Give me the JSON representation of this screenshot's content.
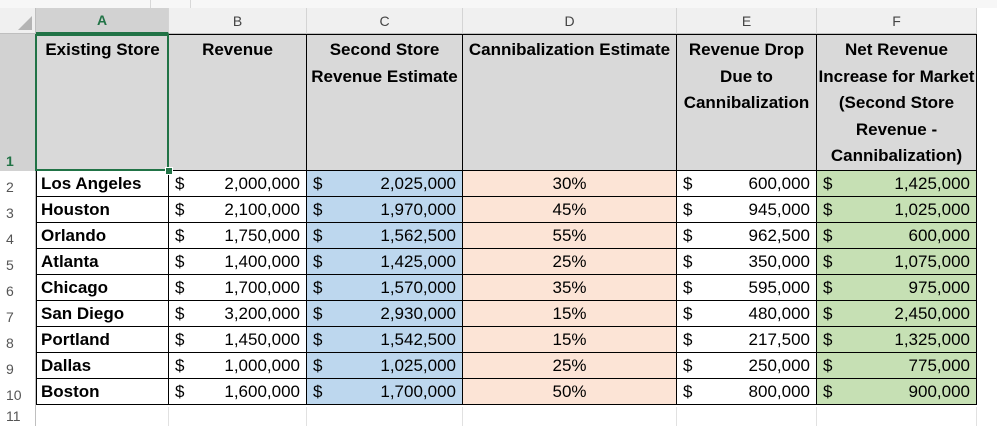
{
  "columns": [
    "A",
    "B",
    "C",
    "D",
    "E",
    "F"
  ],
  "row_numbers": [
    "1",
    "2",
    "3",
    "4",
    "5",
    "6",
    "7",
    "8",
    "9",
    "10",
    "11"
  ],
  "headers": {
    "existing_store": "Existing Store",
    "revenue": "Revenue",
    "second_store": "Second Store Revenue Estimate",
    "cannibalization": "Cannibalization Estimate",
    "revenue_drop": "Revenue Drop Due to Cannibalization",
    "net_increase": "Net Revenue Increase for Market (Second Store Revenue - Cannibalization)"
  },
  "currency_symbol": "$",
  "rows": [
    {
      "store": "Los Angeles",
      "revenue": "2,000,000",
      "second": "2,025,000",
      "cannibal": "30%",
      "drop": "600,000",
      "net": "1,425,000"
    },
    {
      "store": "Houston",
      "revenue": "2,100,000",
      "second": "1,970,000",
      "cannibal": "45%",
      "drop": "945,000",
      "net": "1,025,000"
    },
    {
      "store": "Orlando",
      "revenue": "1,750,000",
      "second": "1,562,500",
      "cannibal": "55%",
      "drop": "962,500",
      "net": "600,000"
    },
    {
      "store": "Atlanta",
      "revenue": "1,400,000",
      "second": "1,425,000",
      "cannibal": "25%",
      "drop": "350,000",
      "net": "1,075,000"
    },
    {
      "store": "Chicago",
      "revenue": "1,700,000",
      "second": "1,570,000",
      "cannibal": "35%",
      "drop": "595,000",
      "net": "975,000"
    },
    {
      "store": "San Diego",
      "revenue": "3,200,000",
      "second": "2,930,000",
      "cannibal": "15%",
      "drop": "480,000",
      "net": "2,450,000"
    },
    {
      "store": "Portland",
      "revenue": "1,450,000",
      "second": "1,542,500",
      "cannibal": "15%",
      "drop": "217,500",
      "net": "1,325,000"
    },
    {
      "store": "Dallas",
      "revenue": "1,000,000",
      "second": "1,025,000",
      "cannibal": "25%",
      "drop": "250,000",
      "net": "775,000"
    },
    {
      "store": "Boston",
      "revenue": "1,600,000",
      "second": "1,700,000",
      "cannibal": "50%",
      "drop": "800,000",
      "net": "900,000"
    }
  ],
  "colors": {
    "selection": "#217346",
    "second_fill": "#bdd7ee",
    "cannibal_fill": "#fce4d6",
    "net_fill": "#c6e0b4",
    "header_fill": "#d9d9d9"
  }
}
